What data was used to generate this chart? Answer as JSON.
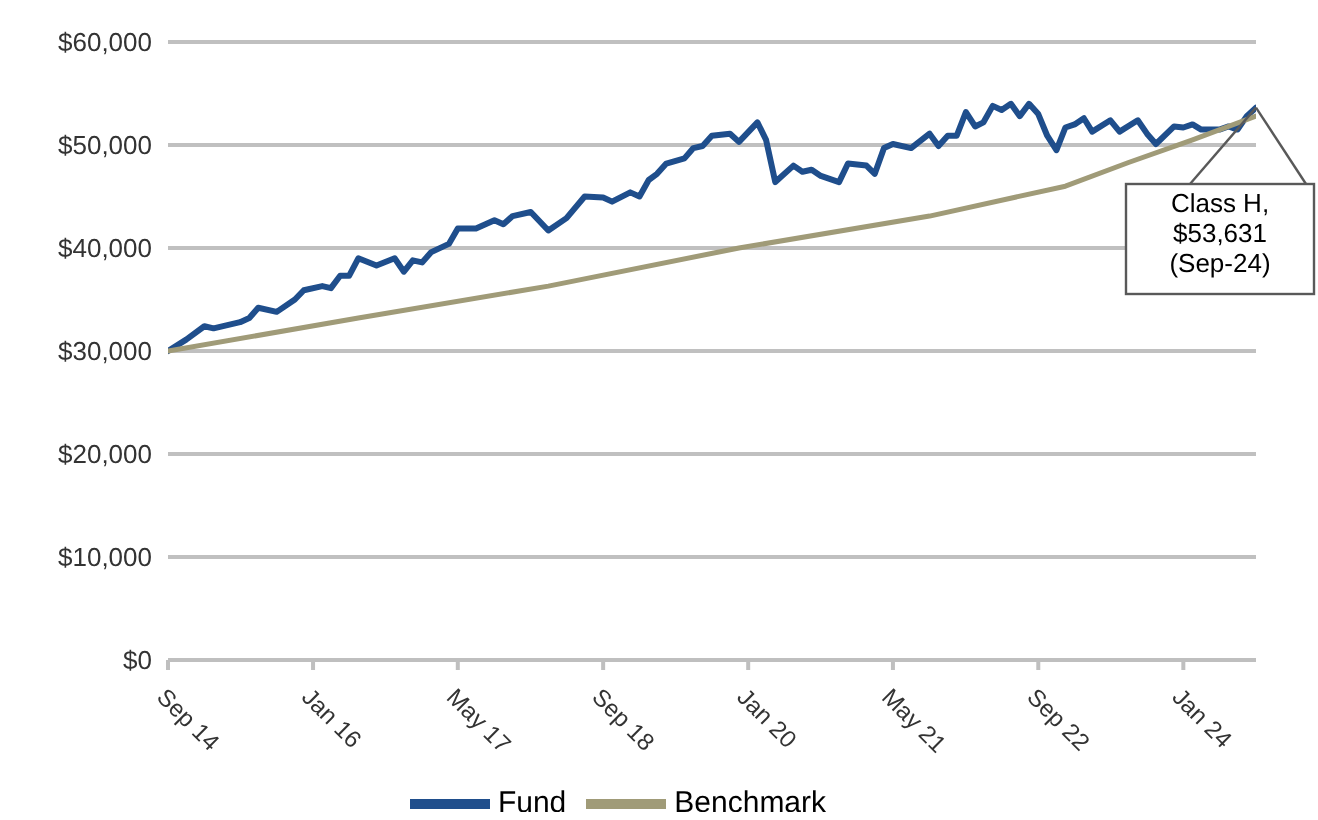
{
  "chart_data": {
    "type": "line",
    "x": [
      "2014-09",
      "2014-11",
      "2015-01",
      "2015-02",
      "2015-05",
      "2015-06",
      "2015-07",
      "2015-09",
      "2015-11",
      "2015-12",
      "2016-02",
      "2016-03",
      "2016-04",
      "2016-05",
      "2016-06",
      "2016-08",
      "2016-10",
      "2016-11",
      "2016-12",
      "2017-01",
      "2017-02",
      "2017-04",
      "2017-05",
      "2017-07",
      "2017-09",
      "2017-10",
      "2017-11",
      "2018-01",
      "2018-03",
      "2018-05",
      "2018-07",
      "2018-09",
      "2018-10",
      "2018-12",
      "2019-01",
      "2019-02",
      "2019-03",
      "2019-04",
      "2019-06",
      "2019-07",
      "2019-08",
      "2019-09",
      "2019-11",
      "2019-12",
      "2020-02",
      "2020-03",
      "2020-04",
      "2020-06",
      "2020-07",
      "2020-08",
      "2020-09",
      "2020-11",
      "2020-12",
      "2021-02",
      "2021-03",
      "2021-04",
      "2021-05",
      "2021-07",
      "2021-09",
      "2021-10",
      "2021-11",
      "2021-12",
      "2022-01",
      "2022-02",
      "2022-03",
      "2022-04",
      "2022-05",
      "2022-06",
      "2022-07",
      "2022-08",
      "2022-09",
      "2022-10",
      "2022-11",
      "2022-12",
      "2023-01",
      "2023-02",
      "2023-03",
      "2023-05",
      "2023-06",
      "2023-08",
      "2023-09",
      "2023-10",
      "2023-12",
      "2024-01",
      "2024-02",
      "2024-03",
      "2024-05",
      "2024-06",
      "2024-07",
      "2024-08",
      "2024-09"
    ],
    "series": [
      {
        "name": "Fund",
        "color": "#1f4e8c",
        "values": [
          30000,
          31100,
          32400,
          32200,
          32800,
          33200,
          34200,
          33800,
          35000,
          35900,
          36300,
          36100,
          37300,
          37300,
          39000,
          38300,
          39000,
          37700,
          38800,
          38600,
          39600,
          40400,
          41900,
          41900,
          42700,
          42300,
          43100,
          43500,
          41700,
          42900,
          45000,
          44900,
          44500,
          45400,
          45000,
          46600,
          47200,
          48200,
          48700,
          49700,
          49900,
          50900,
          51100,
          50300,
          52200,
          50500,
          46400,
          48000,
          47400,
          47600,
          47000,
          46400,
          48200,
          48000,
          47200,
          49700,
          50100,
          49700,
          51100,
          49900,
          50900,
          50900,
          53200,
          51800,
          52200,
          53800,
          53400,
          54000,
          52800,
          54000,
          53000,
          50900,
          49500,
          51700,
          52000,
          52600,
          51300,
          52400,
          51300,
          52400,
          51100,
          50100,
          51800,
          51700,
          52000,
          51500,
          51500,
          51800,
          51500,
          52800,
          53631
        ]
      },
      {
        "name": "Benchmark",
        "color": "#a09b78",
        "x": [
          "2014-09",
          "2016-06",
          "2018-03",
          "2019-12",
          "2021-09",
          "2022-12",
          "2023-07",
          "2024-02",
          "2024-09"
        ],
        "values": [
          30000,
          33200,
          36300,
          40000,
          43100,
          46000,
          48300,
          50500,
          52800
        ]
      }
    ],
    "xlim": [
      "2014-09",
      "2024-09"
    ],
    "xticks": [
      {
        "value": "2014-09",
        "label": "Sep 14"
      },
      {
        "value": "2016-01",
        "label": "Jan 16"
      },
      {
        "value": "2017-05",
        "label": "May 17"
      },
      {
        "value": "2018-09",
        "label": "Sep 18"
      },
      {
        "value": "2020-01",
        "label": "Jan 20"
      },
      {
        "value": "2021-05",
        "label": "May 21"
      },
      {
        "value": "2022-09",
        "label": "Sep 22"
      },
      {
        "value": "2024-01",
        "label": "Jan 24"
      }
    ],
    "ylim": [
      0,
      60000
    ],
    "yticks": [
      {
        "value": 0,
        "label": "$0"
      },
      {
        "value": 10000,
        "label": "$10,000"
      },
      {
        "value": 20000,
        "label": "$20,000"
      },
      {
        "value": 30000,
        "label": "$30,000"
      },
      {
        "value": 40000,
        "label": "$40,000"
      },
      {
        "value": 50000,
        "label": "$50,000"
      },
      {
        "value": 60000,
        "label": "$60,000"
      }
    ],
    "grid": "y",
    "legend": "bottom",
    "marker": "none",
    "line_style": "solid",
    "annotations": [
      {
        "text": "Class H, $53,631 (Sep-24)",
        "x": "2024-09",
        "y": 53631
      }
    ]
  }
}
